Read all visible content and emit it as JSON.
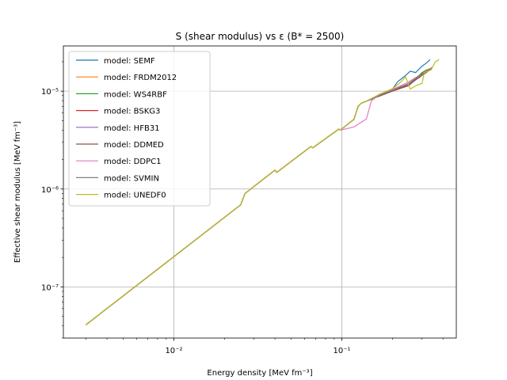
{
  "chart_data": {
    "type": "line",
    "title": "S (shear modulus) vs ε (B* = 2500)",
    "xlabel": "Energy density [MeV fm⁻³]",
    "ylabel": "Effective shear modulus [MeV fm⁻³]",
    "xscale": "log",
    "yscale": "log",
    "xlim": [
      0.0022,
      0.48
    ],
    "ylim": [
      3e-08,
      2.9e-05
    ],
    "grid": true,
    "legend_position": "upper-left",
    "x_ticks": [
      {
        "value": 0.01,
        "label": "10⁻²"
      },
      {
        "value": 0.1,
        "label": "10⁻¹"
      }
    ],
    "y_ticks": [
      {
        "value": 1e-07,
        "label": "10⁻⁷"
      },
      {
        "value": 1e-06,
        "label": "10⁻⁶"
      },
      {
        "value": 1e-05,
        "label": "10⁻⁵"
      }
    ],
    "base_curve": [
      [
        0.003,
        4.1e-08
      ],
      [
        0.025,
        6.9e-07
      ],
      [
        0.0265,
        9e-07
      ],
      [
        0.04,
        1.56e-06
      ],
      [
        0.041,
        1.48e-06
      ],
      [
        0.0655,
        2.72e-06
      ],
      [
        0.067,
        2.63e-06
      ],
      [
        0.096,
        4.1e-06
      ],
      [
        0.098,
        4e-06
      ],
      [
        0.118,
        5.15e-06
      ],
      [
        0.125,
        7e-06
      ],
      [
        0.13,
        7.5e-06
      ]
    ],
    "series": [
      {
        "name": "model: SEMF",
        "color": "#1f77b4",
        "tail": [
          [
            0.14,
            7.9e-06
          ],
          [
            0.17,
            9.4e-06
          ],
          [
            0.18,
            9.3e-06
          ],
          [
            0.2,
            1.05e-05
          ],
          [
            0.215,
            1.25e-05
          ],
          [
            0.24,
            1.45e-05
          ],
          [
            0.255,
            1.6e-05
          ],
          [
            0.275,
            1.55e-05
          ],
          [
            0.3,
            1.8e-05
          ],
          [
            0.32,
            1.95e-05
          ],
          [
            0.335,
            2.1e-05
          ]
        ]
      },
      {
        "name": "model: FRDM2012",
        "color": "#ff7f0e",
        "tail": [
          [
            0.14,
            7.9e-06
          ],
          [
            0.17,
            9.2e-06
          ],
          [
            0.2,
            1e-05
          ],
          [
            0.25,
            1.2e-05
          ],
          [
            0.29,
            1.45e-05
          ],
          [
            0.31,
            1.6e-05
          ],
          [
            0.34,
            1.72e-05
          ]
        ]
      },
      {
        "name": "model: WS4RBF",
        "color": "#2ca02c",
        "tail": [
          [
            0.14,
            7.9e-06
          ],
          [
            0.17,
            9.3e-06
          ],
          [
            0.2,
            1.05e-05
          ],
          [
            0.24,
            1.15e-05
          ],
          [
            0.27,
            1.3e-05
          ],
          [
            0.3,
            1.55e-05
          ],
          [
            0.32,
            1.65e-05
          ],
          [
            0.34,
            1.7e-05
          ]
        ]
      },
      {
        "name": "model: BSKG3",
        "color": "#d62728",
        "tail": [
          [
            0.14,
            7.9e-06
          ],
          [
            0.17,
            9e-06
          ],
          [
            0.2,
            1.02e-05
          ],
          [
            0.25,
            1.15e-05
          ],
          [
            0.29,
            1.4e-05
          ],
          [
            0.32,
            1.6e-05
          ],
          [
            0.345,
            1.75e-05
          ]
        ]
      },
      {
        "name": "model: HFB31",
        "color": "#9467bd",
        "tail": [
          [
            0.14,
            7.9e-06
          ],
          [
            0.17,
            9.1e-06
          ],
          [
            0.2,
            1.03e-05
          ],
          [
            0.25,
            1.18e-05
          ],
          [
            0.29,
            1.38e-05
          ],
          [
            0.32,
            1.62e-05
          ],
          [
            0.34,
            1.7e-05
          ]
        ]
      },
      {
        "name": "model: DDMED",
        "color": "#8c564b",
        "tail": [
          [
            0.14,
            7.9e-06
          ],
          [
            0.17,
            9e-06
          ],
          [
            0.2,
            1e-05
          ],
          [
            0.25,
            1.14e-05
          ],
          [
            0.28,
            1.35e-05
          ],
          [
            0.31,
            1.5e-05
          ],
          [
            0.34,
            1.68e-05
          ]
        ]
      },
      {
        "name": "model: DDPC1",
        "color": "#e377c2",
        "tail": [
          [
            0.118,
            4.3e-06
          ],
          [
            0.125,
            4.6e-06
          ],
          [
            0.14,
            5.2e-06
          ],
          [
            0.15,
            8e-06
          ],
          [
            0.17,
            9.3e-06
          ],
          [
            0.2,
            1.04e-05
          ],
          [
            0.24,
            1.2e-05
          ],
          [
            0.28,
            1.4e-05
          ],
          [
            0.31,
            1.55e-05
          ],
          [
            0.34,
            1.72e-05
          ]
        ]
      },
      {
        "name": "model: SVMIN",
        "color": "#7f7f7f",
        "tail": [
          [
            0.14,
            7.9e-06
          ],
          [
            0.17,
            9.2e-06
          ],
          [
            0.2,
            1.02e-05
          ],
          [
            0.25,
            1.2e-05
          ],
          [
            0.29,
            1.45e-05
          ],
          [
            0.32,
            1.6e-05
          ],
          [
            0.34,
            1.7e-05
          ]
        ]
      },
      {
        "name": "model: UNEDF0",
        "color": "#bcbd22",
        "tail": [
          [
            0.14,
            7.9e-06
          ],
          [
            0.17,
            9.4e-06
          ],
          [
            0.2,
            1.06e-05
          ],
          [
            0.22,
            1.2e-05
          ],
          [
            0.24,
            1.4e-05
          ],
          [
            0.255,
            1.05e-05
          ],
          [
            0.28,
            1.15e-05
          ],
          [
            0.3,
            1.2e-05
          ],
          [
            0.31,
            1.55e-05
          ],
          [
            0.34,
            1.65e-05
          ],
          [
            0.36,
            2e-05
          ],
          [
            0.38,
            2.1e-05
          ]
        ]
      }
    ]
  }
}
